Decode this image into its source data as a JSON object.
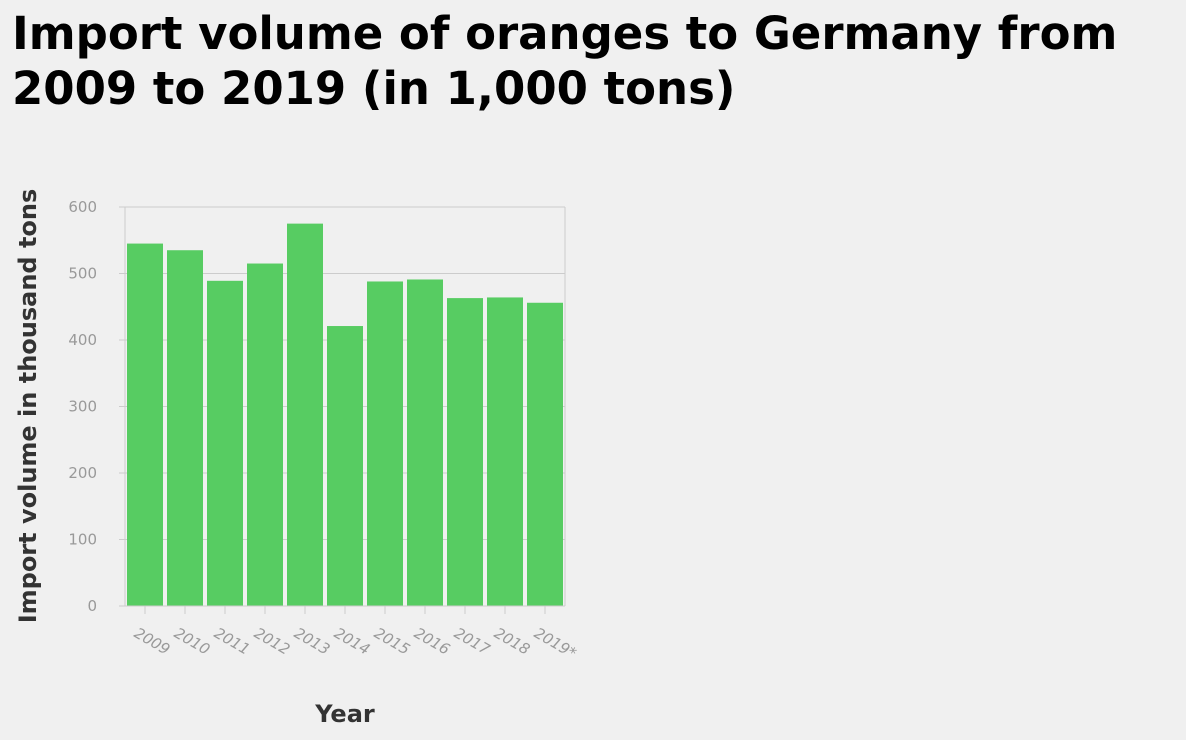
{
  "chart_data": {
    "type": "bar",
    "title": "Import volume of oranges to Germany from 2009 to 2019 (in 1,000 tons)",
    "xlabel": "Year",
    "ylabel": "Import volume in thousand tons",
    "categories": [
      "2009",
      "2010",
      "2011",
      "2012",
      "2013",
      "2014",
      "2015",
      "2016",
      "2017",
      "2018",
      "2019*"
    ],
    "values": [
      545,
      535,
      489,
      515,
      575,
      421,
      488,
      491,
      463,
      464,
      456
    ],
    "ylim": [
      0,
      600
    ],
    "yticks": [
      0,
      100,
      200,
      300,
      400,
      500,
      600
    ],
    "grid": true,
    "bar_color": "#57cc62",
    "grid_color": "#cccccc",
    "axis_color": "#cccccc"
  }
}
